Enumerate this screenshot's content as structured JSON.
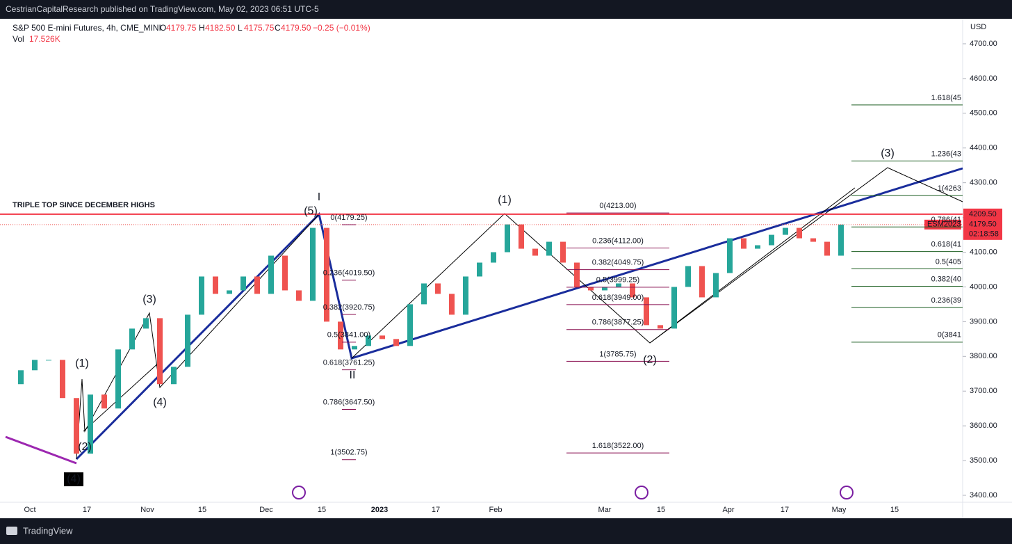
{
  "header": {
    "published": "CestrianCapitalResearch published on TradingView.com, May 02, 2023 06:51 UTC-5"
  },
  "legend": {
    "symbol": "S&P 500 E-mini Futures, 4h, CME_MINI",
    "ohlc": [
      {
        "key": "O",
        "value": "4179.75"
      },
      {
        "key": "H",
        "value": "4182.50"
      },
      {
        "key": "L",
        "value": "4175.75"
      },
      {
        "key": "C",
        "value": "4179.50"
      }
    ],
    "change": "−0.25 (−0.01%)",
    "volume_label": "Vol",
    "volume": "17.526K"
  },
  "chart_data": {
    "type": "candlestick",
    "currency": "USD",
    "ylim": [
      3380,
      4772
    ],
    "yticks": [
      {
        "value": 3400,
        "label": "3400.00"
      },
      {
        "value": 3500,
        "label": "3500.00"
      },
      {
        "value": 3600,
        "label": "3600.00"
      },
      {
        "value": 3700,
        "label": "3700.00"
      },
      {
        "value": 3800,
        "label": "3800.00"
      },
      {
        "value": 3900,
        "label": "3900.00"
      },
      {
        "value": 4000,
        "label": "4000.00"
      },
      {
        "value": 4100,
        "label": "4100.00"
      },
      {
        "value": 4200,
        "label": "4200.00"
      },
      {
        "value": 4300,
        "label": "4300.00"
      },
      {
        "value": 4400,
        "label": "4400.00"
      },
      {
        "value": 4500,
        "label": "4500.00"
      },
      {
        "value": 4600,
        "label": "4600.00"
      },
      {
        "value": 4700,
        "label": "4700.00"
      }
    ],
    "x_labels": [
      "Oct",
      "17",
      "Nov",
      "15",
      "Dec",
      "15",
      "2023",
      "17",
      "Feb",
      "Mar",
      "15",
      "Apr",
      "17",
      "May",
      "15"
    ],
    "colors": {
      "up": "#26a69a",
      "down": "#ef5350"
    },
    "close": [
      3720,
      3760,
      3790,
      3790,
      3680,
      3520,
      3690,
      3650,
      3820,
      3880,
      3910,
      3720,
      3770,
      3920,
      4030,
      3980,
      3990,
      4030,
      3980,
      4090,
      3990,
      3960,
      4170,
      3900,
      3820,
      3830,
      3860,
      3850,
      3830,
      3950,
      4010,
      3980,
      3920,
      4030,
      4070,
      4100,
      4180,
      4110,
      4090,
      4130,
      4070,
      4000,
      3990,
      4000,
      4010,
      3970,
      3890,
      3880,
      4000,
      4060,
      3970,
      4040,
      4140,
      4110,
      4120,
      4150,
      4170,
      4140,
      4130,
      4090,
      4179.5
    ],
    "last_price": {
      "value": 4179.5,
      "label": "4179.50"
    },
    "symbol_tag": "ESM2023",
    "countdown": "02:18:58",
    "high_line": {
      "value": 4209.5,
      "label": "4209.50",
      "annotation": "TRIPLE TOP SINCE DECEMBER HIGHS",
      "color": "#f23645"
    },
    "waves": [
      "(4)",
      "(1)",
      "(2)",
      "(3)",
      "(4)",
      "(5)",
      "I",
      "II",
      "(1)",
      "(2)",
      "(3)"
    ],
    "fib_sets": [
      {
        "color": "#880e4f",
        "levels": [
          {
            "value": 4179.25,
            "label": "0(4179.25)"
          },
          {
            "value": 4019.5,
            "label": "0.236(4019.50)"
          },
          {
            "value": 3920.75,
            "label": "0.382(3920.75)"
          },
          {
            "value": 3841,
            "label": "0.5(3841.00)"
          },
          {
            "value": 3761.25,
            "label": "0.618(3761.25)"
          },
          {
            "value": 3647.5,
            "label": "0.786(3647.50)"
          },
          {
            "value": 3502.75,
            "label": "1(3502.75)"
          }
        ]
      },
      {
        "color": "#880e4f",
        "levels": [
          {
            "value": 4213,
            "label": "0(4213.00)"
          },
          {
            "value": 4112,
            "label": "0.236(4112.00)"
          },
          {
            "value": 4049.75,
            "label": "0.382(4049.75)"
          },
          {
            "value": 3999.25,
            "label": "0.5(3999.25)"
          },
          {
            "value": 3949,
            "label": "0.618(3949.00)"
          },
          {
            "value": 3877.25,
            "label": "0.786(3877.25)"
          },
          {
            "value": 3785.75,
            "label": "1(3785.75)"
          },
          {
            "value": 3522,
            "label": "1.618(3522.00)"
          }
        ]
      },
      {
        "color": "#1b5e20",
        "levels": [
          {
            "value": 4523.8,
            "label": "1.618(45"
          },
          {
            "value": 4362.6,
            "label": "1.236(43"
          },
          {
            "value": 4263,
            "label": "1(4263"
          },
          {
            "value": 4172.7,
            "label": "0.786(41"
          },
          {
            "value": 4101.8,
            "label": "0.618(41"
          },
          {
            "value": 4052,
            "label": "0.5(405"
          },
          {
            "value": 4002,
            "label": "0.382(40"
          },
          {
            "value": 3940.6,
            "label": "0.236(39"
          },
          {
            "value": 3841,
            "label": "0(3841"
          }
        ]
      }
    ]
  },
  "footer": {
    "brand": "TradingView"
  }
}
